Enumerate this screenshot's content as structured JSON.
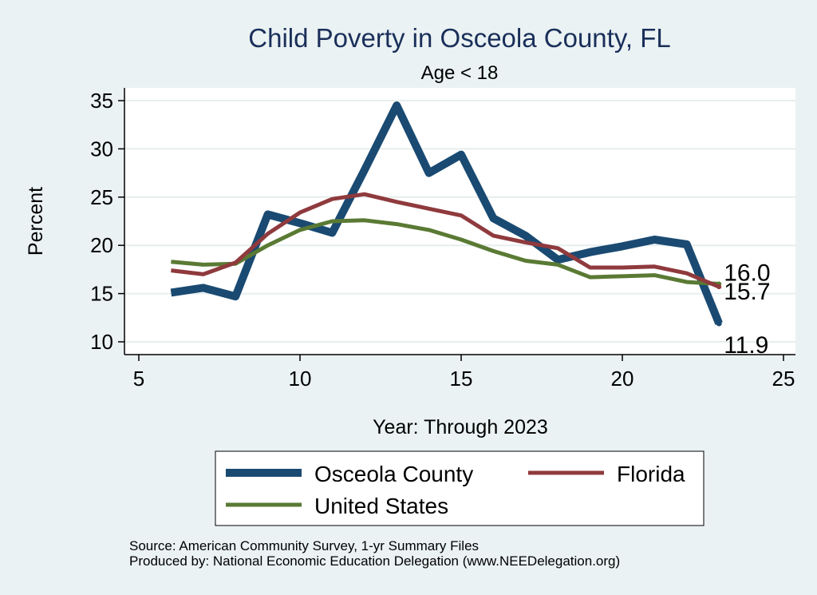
{
  "chart_data": {
    "type": "line",
    "title": "Child Poverty in Osceola County, FL",
    "subtitle": "Age < 18",
    "xlabel": "Year: Through 2023",
    "ylabel": "Percent",
    "xlim": [
      5,
      25
    ],
    "ylim": [
      10,
      35
    ],
    "xticks": [
      5,
      10,
      15,
      20,
      25
    ],
    "yticks": [
      10,
      15,
      20,
      25,
      30,
      35
    ],
    "grid": true,
    "legend_position": "bottom",
    "series": [
      {
        "name": "Osceola County",
        "color": "#1a4a72",
        "x": [
          6,
          7,
          8,
          9,
          10,
          11,
          12,
          13,
          14,
          15,
          16,
          17,
          18,
          19,
          20,
          21,
          22,
          23
        ],
        "values": [
          15.1,
          15.6,
          14.7,
          23.2,
          22.3,
          21.3,
          27.8,
          34.5,
          27.5,
          29.4,
          22.8,
          21.0,
          18.5,
          19.3,
          19.9,
          20.6,
          20.1,
          11.9
        ],
        "end_label": "11.9"
      },
      {
        "name": "Florida",
        "color": "#8f3a3d",
        "x": [
          6,
          7,
          8,
          9,
          10,
          11,
          12,
          13,
          14,
          15,
          16,
          17,
          18,
          19,
          20,
          21,
          22,
          23
        ],
        "values": [
          17.4,
          17.0,
          18.2,
          21.2,
          23.4,
          24.8,
          25.3,
          24.5,
          23.8,
          23.1,
          21.0,
          20.3,
          19.7,
          17.7,
          17.7,
          17.8,
          17.1,
          15.7
        ],
        "end_label": "15.7"
      },
      {
        "name": "United States",
        "color": "#5a7a34",
        "x": [
          6,
          7,
          8,
          9,
          10,
          11,
          12,
          13,
          14,
          15,
          16,
          17,
          18,
          19,
          20,
          21,
          22,
          23
        ],
        "values": [
          18.3,
          18.0,
          18.1,
          20.0,
          21.6,
          22.5,
          22.6,
          22.2,
          21.6,
          20.6,
          19.4,
          18.4,
          18.0,
          16.7,
          16.8,
          16.9,
          16.2,
          16.0
        ],
        "end_label": "16.0"
      }
    ],
    "source_lines": [
      "Source: American Community Survey, 1-yr Summary Files",
      "Produced by: National Economic Education Delegation (www.NEEDelegation.org)"
    ]
  }
}
